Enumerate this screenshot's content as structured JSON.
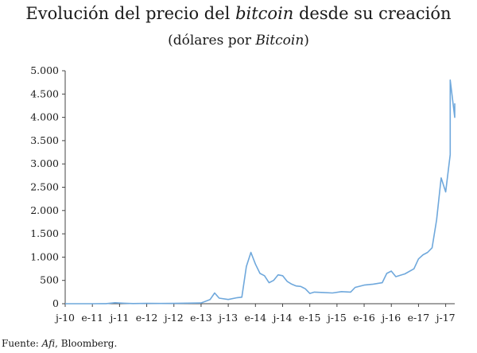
{
  "header": {
    "title_pre": "Evolución del precio del ",
    "title_em": "bitcoin",
    "title_post": " desde su creación",
    "subtitle_pre": "(dólares por ",
    "subtitle_em": "Bitcoin",
    "subtitle_post": ")"
  },
  "footer": {
    "source_pre": "Fuente: ",
    "source_em": "Afi",
    "source_post": ", Bloomberg."
  },
  "colors": {
    "line": "#6fa8dc",
    "axis": "#444444"
  },
  "chart_data": {
    "type": "line",
    "title": "Evolución del precio del bitcoin desde su creación",
    "subtitle": "(dólares por Bitcoin)",
    "xlabel": "",
    "ylabel": "",
    "ylim": [
      0,
      5000
    ],
    "xlim": [
      "2010-07",
      "2017-09"
    ],
    "grid": false,
    "legend": "none",
    "y_ticks": [
      0,
      500,
      1000,
      1500,
      2000,
      2500,
      3000,
      3500,
      4000,
      4500,
      5000
    ],
    "y_tick_labels": [
      "0",
      "500",
      "1.000",
      "1.500",
      "2.000",
      "2.500",
      "3.000",
      "3.500",
      "4.000",
      "4.500",
      "5.000"
    ],
    "x_tick_labels": [
      "j-10",
      "e-11",
      "j-11",
      "e-12",
      "j-12",
      "e-13",
      "j-13",
      "e-14",
      "j-14",
      "e-15",
      "j-15",
      "e-16",
      "j-16",
      "e-17",
      "j-17"
    ],
    "x_tick_dates": [
      "2010-07",
      "2011-01",
      "2011-07",
      "2012-01",
      "2012-07",
      "2013-01",
      "2013-07",
      "2014-01",
      "2014-07",
      "2015-01",
      "2015-07",
      "2016-01",
      "2016-07",
      "2017-01",
      "2017-07"
    ],
    "series": [
      {
        "x": [
          "2010-07",
          "2010-10",
          "2011-01",
          "2011-04",
          "2011-06",
          "2011-08",
          "2011-10",
          "2012-01",
          "2012-04",
          "2012-07",
          "2012-10",
          "2013-01",
          "2013-03",
          "2013-04",
          "2013-05",
          "2013-07",
          "2013-09",
          "2013-10",
          "2013-11",
          "2013-12",
          "2014-01",
          "2014-02",
          "2014-03",
          "2014-04",
          "2014-05",
          "2014-06",
          "2014-07",
          "2014-08",
          "2014-09",
          "2014-10",
          "2014-11",
          "2014-12",
          "2015-01",
          "2015-02",
          "2015-04",
          "2015-06",
          "2015-08",
          "2015-10",
          "2015-11",
          "2016-01",
          "2016-03",
          "2016-05",
          "2016-06",
          "2016-07",
          "2016-08",
          "2016-10",
          "2016-12",
          "2017-01",
          "2017-02",
          "2017-03",
          "2017-04",
          "2017-05",
          "2017-06",
          "2017-07",
          "2017-08",
          "2017-08",
          "2017-09",
          "2017-09"
        ],
        "values": [
          0.1,
          0.2,
          0.3,
          1,
          20,
          10,
          4,
          6,
          5,
          7,
          12,
          15,
          90,
          230,
          120,
          90,
          130,
          140,
          800,
          1100,
          850,
          650,
          600,
          450,
          500,
          620,
          600,
          480,
          420,
          380,
          370,
          320,
          220,
          250,
          240,
          230,
          260,
          250,
          350,
          400,
          420,
          450,
          650,
          700,
          580,
          640,
          750,
          960,
          1050,
          1100,
          1200,
          1800,
          2700,
          2400,
          3200,
          4800,
          4000,
          4300
        ]
      }
    ]
  }
}
